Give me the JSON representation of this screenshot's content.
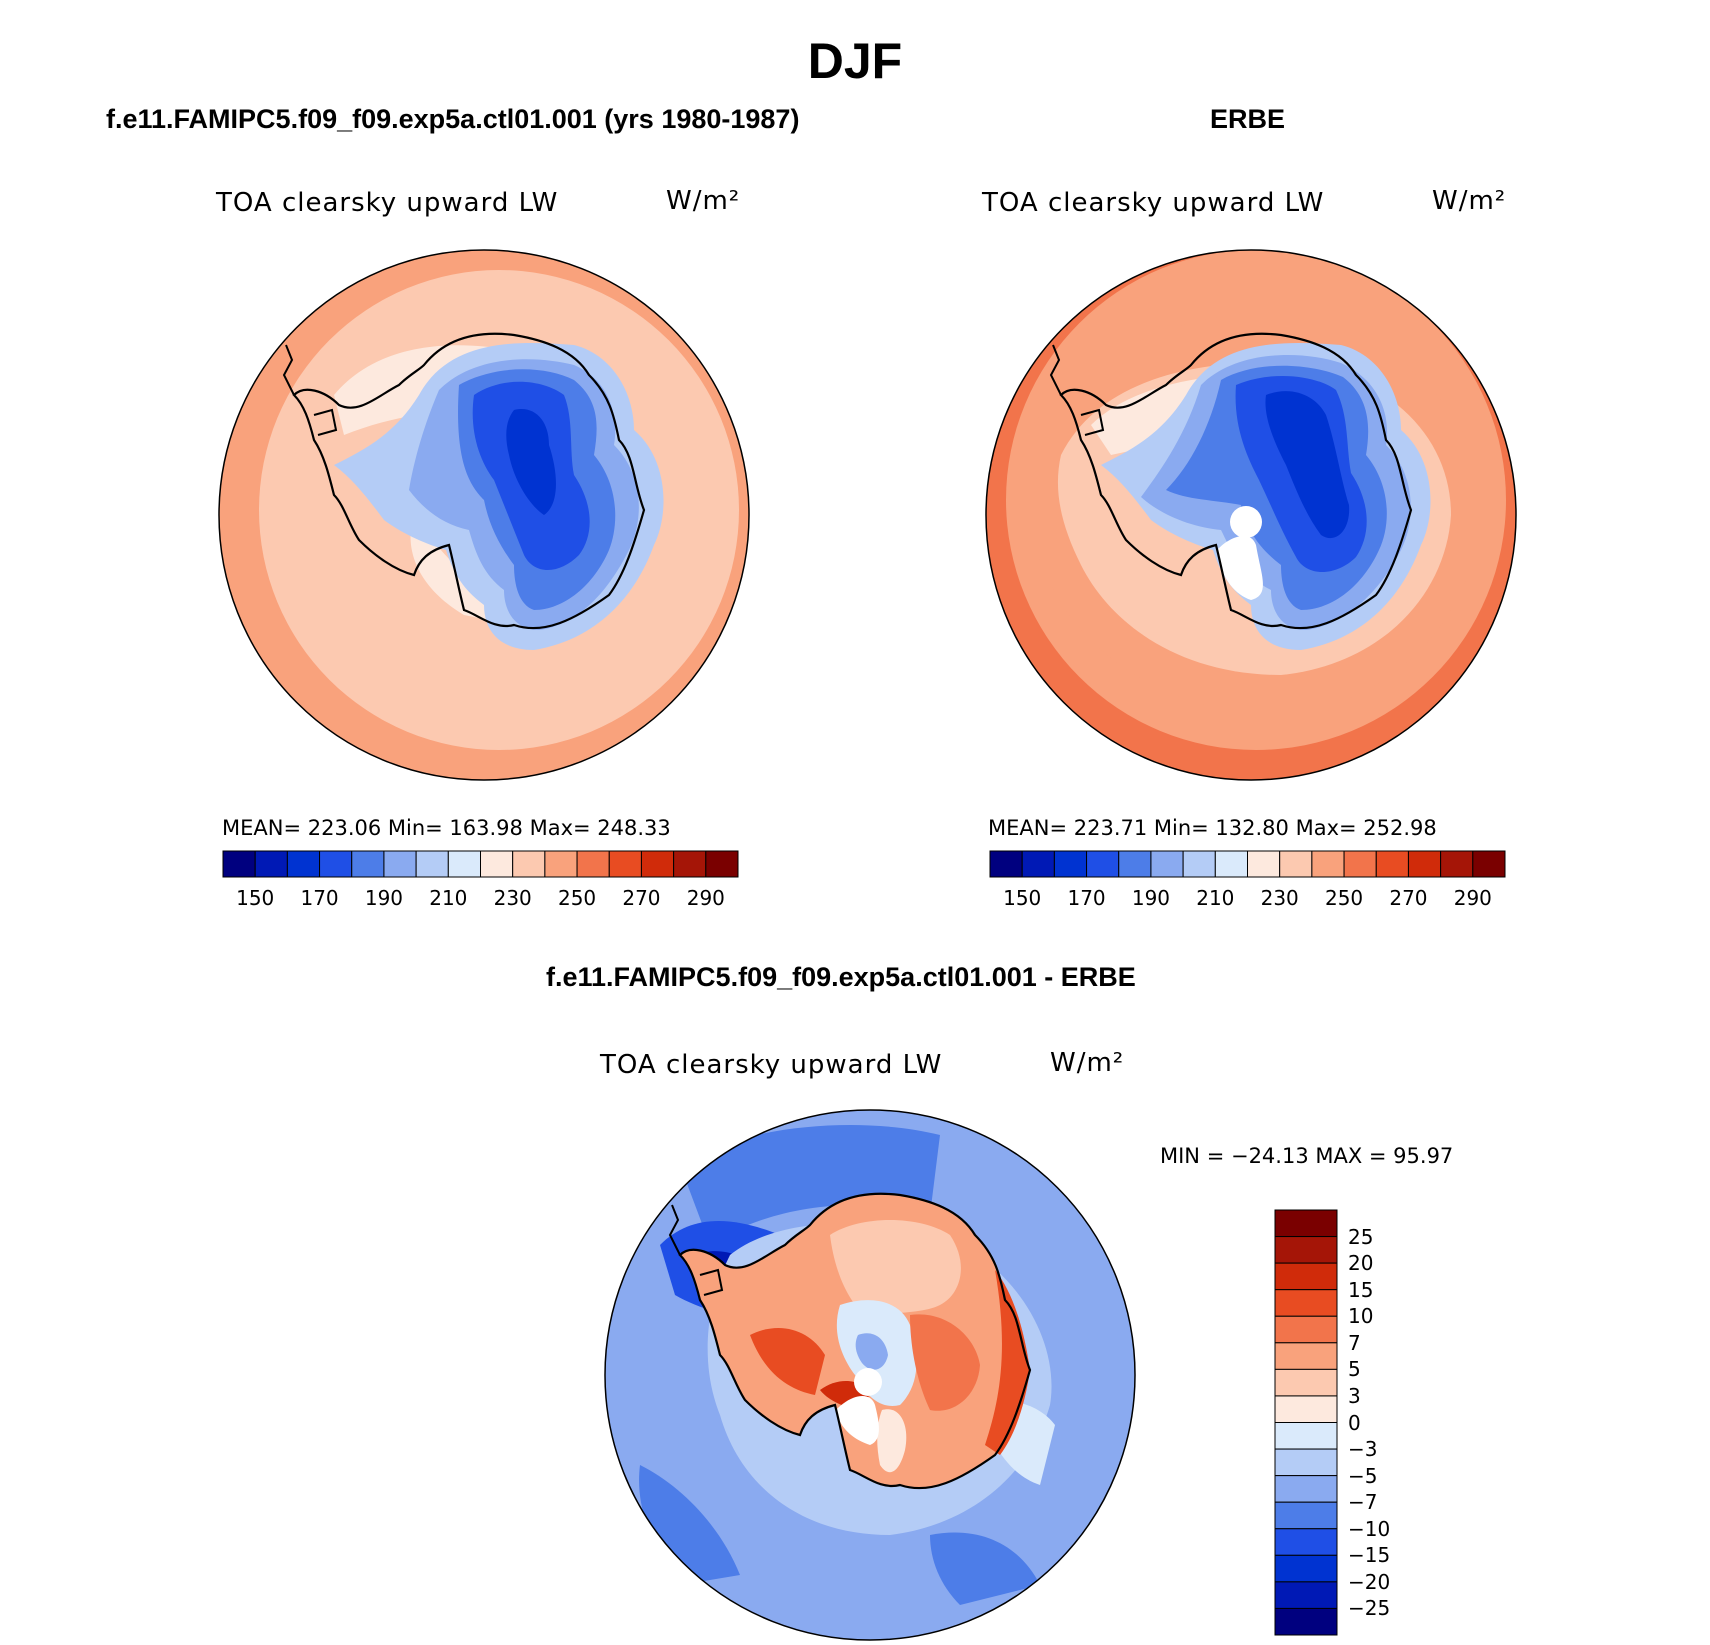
{
  "figure": {
    "season": "DJF"
  },
  "panels": [
    {
      "title": "f.e11.FAMIPC5.f09_f09.exp5a.ctl01.001 (yrs 1980-1987)",
      "variable": "TOA clearsky upward LW",
      "units": "W/m²",
      "stats": "MEAN= 223.06   Min= 163.98   Max= 248.33"
    },
    {
      "title": "ERBE",
      "variable": "TOA clearsky upward LW",
      "units": "W/m²",
      "stats": "MEAN= 223.71   Min= 132.80   Max= 252.98"
    },
    {
      "title": "f.e11.FAMIPC5.f09_f09.exp5a.ctl01.001 - ERBE",
      "variable": "TOA clearsky upward LW",
      "units": "W/m²",
      "stats": "MIN = −24.13 MAX =  95.97"
    }
  ],
  "colorbar_abs": {
    "colors": [
      "#00007f",
      "#0019b5",
      "#0033d1",
      "#1f4fe6",
      "#4d7de8",
      "#8aaaf0",
      "#b4ccf6",
      "#daeafb",
      "#fde9de",
      "#fcc9b0",
      "#f9a27c",
      "#f2744b",
      "#e84c22",
      "#d02b0a",
      "#a51507",
      "#7a0000"
    ],
    "labels": [
      "150",
      "170",
      "190",
      "210",
      "230",
      "250",
      "270",
      "290"
    ]
  },
  "colorbar_diff": {
    "colors": [
      "#7a0000",
      "#a51507",
      "#d02b0a",
      "#e84c22",
      "#f2744b",
      "#f9a27c",
      "#fcc9b0",
      "#fde9de",
      "#daeafb",
      "#b4ccf6",
      "#8aaaf0",
      "#4d7de8",
      "#1f4fe6",
      "#0033d1",
      "#0019b5",
      "#00007f"
    ],
    "labels": [
      "25",
      "20",
      "15",
      "10",
      "7",
      "5",
      "3",
      "0",
      "−3",
      "−5",
      "−7",
      "−10",
      "−15",
      "−20",
      "−25"
    ]
  },
  "map_colors": {
    "ocean_model": "#fcc9b0",
    "ocean_obs": "#f9a27c",
    "ocean_diff": "#8aaaf0",
    "land_diff": "#f2744b",
    "coast": "#000000"
  }
}
